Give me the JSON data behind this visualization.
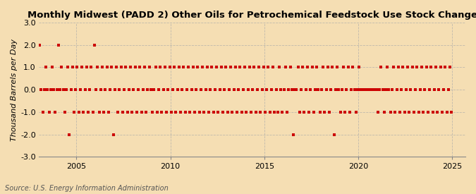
{
  "title": "Monthly Midwest (PADD 2) Other Oils for Petrochemical Feedstock Use Stock Change",
  "ylabel": "Thousand Barrels per Day",
  "source": "Source: U.S. Energy Information Administration",
  "background_color": "#f5deb3",
  "plot_bg_color": "#f5deb3",
  "dot_color": "#cc0000",
  "ylim": [
    -3.0,
    3.0
  ],
  "xlim_start": 2003.0,
  "xlim_end": 2025.7,
  "yticks": [
    -3.0,
    -2.0,
    -1.0,
    0.0,
    1.0,
    2.0,
    3.0
  ],
  "xticks": [
    2005,
    2010,
    2015,
    2020,
    2025
  ],
  "grid_color": "#aaaaaa",
  "title_fontsize": 9.5,
  "label_fontsize": 8,
  "tick_fontsize": 8,
  "source_fontsize": 7,
  "data_years": [
    2003,
    2003,
    2003,
    2003,
    2003,
    2003,
    2003,
    2003,
    2003,
    2003,
    2003,
    2003,
    2004,
    2004,
    2004,
    2004,
    2004,
    2004,
    2004,
    2004,
    2004,
    2004,
    2004,
    2004,
    2005,
    2005,
    2005,
    2005,
    2005,
    2005,
    2005,
    2005,
    2005,
    2005,
    2005,
    2005,
    2006,
    2006,
    2006,
    2006,
    2006,
    2006,
    2006,
    2006,
    2006,
    2006,
    2006,
    2006,
    2007,
    2007,
    2007,
    2007,
    2007,
    2007,
    2007,
    2007,
    2007,
    2007,
    2007,
    2007,
    2008,
    2008,
    2008,
    2008,
    2008,
    2008,
    2008,
    2008,
    2008,
    2008,
    2008,
    2008,
    2009,
    2009,
    2009,
    2009,
    2009,
    2009,
    2009,
    2009,
    2009,
    2009,
    2009,
    2009,
    2010,
    2010,
    2010,
    2010,
    2010,
    2010,
    2010,
    2010,
    2010,
    2010,
    2010,
    2010,
    2011,
    2011,
    2011,
    2011,
    2011,
    2011,
    2011,
    2011,
    2011,
    2011,
    2011,
    2011,
    2012,
    2012,
    2012,
    2012,
    2012,
    2012,
    2012,
    2012,
    2012,
    2012,
    2012,
    2012,
    2013,
    2013,
    2013,
    2013,
    2013,
    2013,
    2013,
    2013,
    2013,
    2013,
    2013,
    2013,
    2014,
    2014,
    2014,
    2014,
    2014,
    2014,
    2014,
    2014,
    2014,
    2014,
    2014,
    2014,
    2015,
    2015,
    2015,
    2015,
    2015,
    2015,
    2015,
    2015,
    2015,
    2015,
    2015,
    2015,
    2016,
    2016,
    2016,
    2016,
    2016,
    2016,
    2016,
    2016,
    2016,
    2016,
    2016,
    2016,
    2017,
    2017,
    2017,
    2017,
    2017,
    2017,
    2017,
    2017,
    2017,
    2017,
    2017,
    2017,
    2018,
    2018,
    2018,
    2018,
    2018,
    2018,
    2018,
    2018,
    2018,
    2018,
    2018,
    2018,
    2019,
    2019,
    2019,
    2019,
    2019,
    2019,
    2019,
    2019,
    2019,
    2019,
    2019,
    2019,
    2020,
    2020,
    2020,
    2020,
    2020,
    2020,
    2020,
    2020,
    2020,
    2020,
    2020,
    2020,
    2021,
    2021,
    2021,
    2021,
    2021,
    2021,
    2021,
    2021,
    2021,
    2021,
    2021,
    2021,
    2022,
    2022,
    2022,
    2022,
    2022,
    2022,
    2022,
    2022,
    2022,
    2022,
    2022,
    2022,
    2023,
    2023,
    2023,
    2023,
    2023,
    2023,
    2023,
    2023,
    2023,
    2023,
    2023,
    2023,
    2024,
    2024,
    2024,
    2024,
    2024,
    2024,
    2024,
    2024,
    2024,
    2024,
    2024,
    2024
  ],
  "data_months": [
    1,
    2,
    3,
    4,
    5,
    6,
    7,
    8,
    9,
    10,
    11,
    12,
    1,
    2,
    3,
    4,
    5,
    6,
    7,
    8,
    9,
    10,
    11,
    12,
    1,
    2,
    3,
    4,
    5,
    6,
    7,
    8,
    9,
    10,
    11,
    12,
    1,
    2,
    3,
    4,
    5,
    6,
    7,
    8,
    9,
    10,
    11,
    12,
    1,
    2,
    3,
    4,
    5,
    6,
    7,
    8,
    9,
    10,
    11,
    12,
    1,
    2,
    3,
    4,
    5,
    6,
    7,
    8,
    9,
    10,
    11,
    12,
    1,
    2,
    3,
    4,
    5,
    6,
    7,
    8,
    9,
    10,
    11,
    12,
    1,
    2,
    3,
    4,
    5,
    6,
    7,
    8,
    9,
    10,
    11,
    12,
    1,
    2,
    3,
    4,
    5,
    6,
    7,
    8,
    9,
    10,
    11,
    12,
    1,
    2,
    3,
    4,
    5,
    6,
    7,
    8,
    9,
    10,
    11,
    12,
    1,
    2,
    3,
    4,
    5,
    6,
    7,
    8,
    9,
    10,
    11,
    12,
    1,
    2,
    3,
    4,
    5,
    6,
    7,
    8,
    9,
    10,
    11,
    12,
    1,
    2,
    3,
    4,
    5,
    6,
    7,
    8,
    9,
    10,
    11,
    12,
    1,
    2,
    3,
    4,
    5,
    6,
    7,
    8,
    9,
    10,
    11,
    12,
    1,
    2,
    3,
    4,
    5,
    6,
    7,
    8,
    9,
    10,
    11,
    12,
    1,
    2,
    3,
    4,
    5,
    6,
    7,
    8,
    9,
    10,
    11,
    12,
    1,
    2,
    3,
    4,
    5,
    6,
    7,
    8,
    9,
    10,
    11,
    12,
    1,
    2,
    3,
    4,
    5,
    6,
    7,
    8,
    9,
    10,
    11,
    12,
    1,
    2,
    3,
    4,
    5,
    6,
    7,
    8,
    9,
    10,
    11,
    12,
    1,
    2,
    3,
    4,
    5,
    6,
    7,
    8,
    9,
    10,
    11,
    12,
    1,
    2,
    3,
    4,
    5,
    6,
    7,
    8,
    9,
    10,
    11,
    12,
    1,
    2,
    3,
    4,
    5,
    6,
    7,
    8,
    9,
    10,
    11,
    12
  ],
  "data_values": [
    2,
    0,
    -1,
    0,
    1,
    0,
    -1,
    0,
    1,
    0,
    -1,
    0,
    2,
    0,
    1,
    0,
    -1,
    0,
    1,
    -2,
    0,
    1,
    -1,
    0,
    1,
    -1,
    0,
    1,
    -1,
    0,
    1,
    -1,
    0,
    1,
    -1,
    2,
    0,
    1,
    -1,
    0,
    1,
    -1,
    0,
    1,
    -1,
    0,
    1,
    -2,
    0,
    1,
    -1,
    0,
    1,
    -1,
    0,
    1,
    -1,
    0,
    1,
    -1,
    0,
    1,
    -1,
    0,
    1,
    -1,
    0,
    1,
    -1,
    0,
    1,
    0,
    -1,
    0,
    1,
    -1,
    0,
    1,
    -1,
    0,
    1,
    -1,
    0,
    1,
    -1,
    0,
    1,
    -1,
    0,
    1,
    -1,
    0,
    1,
    -1,
    0,
    1,
    -1,
    0,
    1,
    -1,
    0,
    1,
    -1,
    0,
    1,
    -1,
    0,
    1,
    -1,
    0,
    1,
    -1,
    0,
    1,
    -1,
    0,
    1,
    -1,
    0,
    1,
    -1,
    0,
    1,
    -1,
    0,
    1,
    -1,
    0,
    1,
    -1,
    0,
    1,
    -1,
    0,
    1,
    -1,
    0,
    1,
    -1,
    0,
    1,
    -1,
    0,
    1,
    -1,
    0,
    1,
    -1,
    0,
    1,
    -1,
    0,
    -1,
    1,
    0,
    -1,
    0,
    1,
    -1,
    0,
    1,
    0,
    -2,
    0,
    0,
    1,
    -1,
    0,
    1,
    -1,
    0,
    1,
    -1,
    0,
    1,
    -1,
    0,
    1,
    0,
    -1,
    0,
    1,
    -1,
    0,
    1,
    -1,
    0,
    1,
    -2,
    0,
    1,
    0,
    -1,
    0,
    1,
    -1,
    0,
    1,
    -1,
    0,
    1,
    0,
    -1,
    0,
    1,
    0,
    0,
    0,
    0,
    0,
    0,
    0,
    0,
    0,
    0,
    0,
    -1,
    0,
    1,
    0,
    -1,
    0,
    1,
    0,
    -1,
    0,
    1,
    -1,
    0,
    1,
    -1,
    0,
    1,
    -1,
    0,
    1,
    -1,
    0,
    1,
    -1,
    0,
    1,
    -1,
    0,
    1,
    -1,
    0,
    1,
    -1,
    0,
    1,
    -1,
    0,
    1,
    -1,
    0,
    1,
    -1,
    0,
    1,
    -1,
    0,
    1,
    -1
  ]
}
